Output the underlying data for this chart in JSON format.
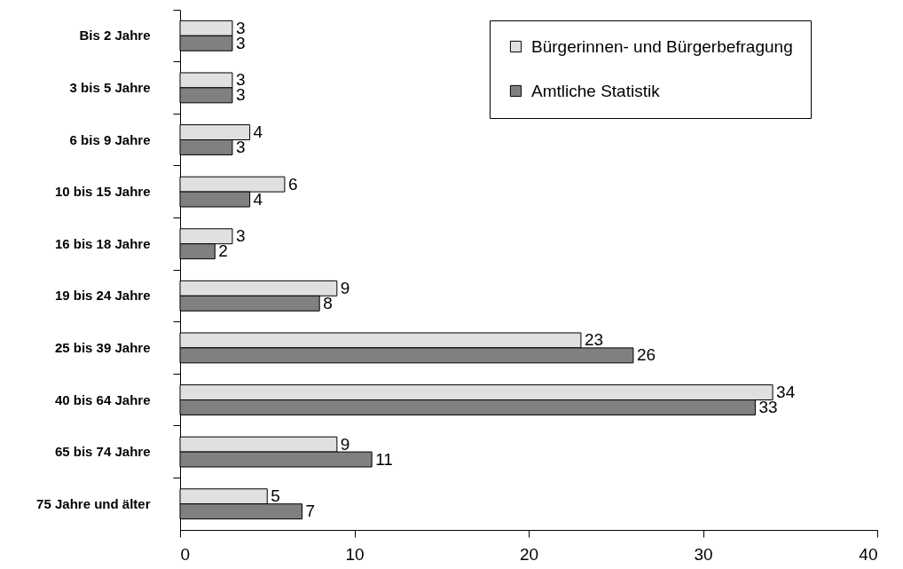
{
  "chart_data": {
    "type": "bar",
    "orientation": "horizontal",
    "categories": [
      "Bis 2 Jahre",
      "3 bis 5 Jahre",
      "6 bis 9 Jahre",
      "10 bis 15 Jahre",
      "16 bis 18 Jahre",
      "19 bis 24 Jahre",
      "25 bis 39 Jahre",
      "40 bis 64 Jahre",
      "65 bis 74 Jahre",
      "75 Jahre und älter"
    ],
    "series": [
      {
        "name": "Bürgerinnen- und Bürgerbefragung",
        "color": "#e0e0e0",
        "values": [
          3,
          3,
          4,
          6,
          3,
          9,
          23,
          34,
          9,
          5
        ]
      },
      {
        "name": "Amtliche Statistik",
        "color": "#808080",
        "values": [
          3,
          3,
          3,
          4,
          2,
          8,
          26,
          33,
          11,
          7
        ]
      }
    ],
    "xlim": [
      0,
      40
    ],
    "xticks": [
      0,
      10,
      20,
      30,
      40
    ],
    "grid": false,
    "legend": "top right",
    "data_labels": true
  }
}
